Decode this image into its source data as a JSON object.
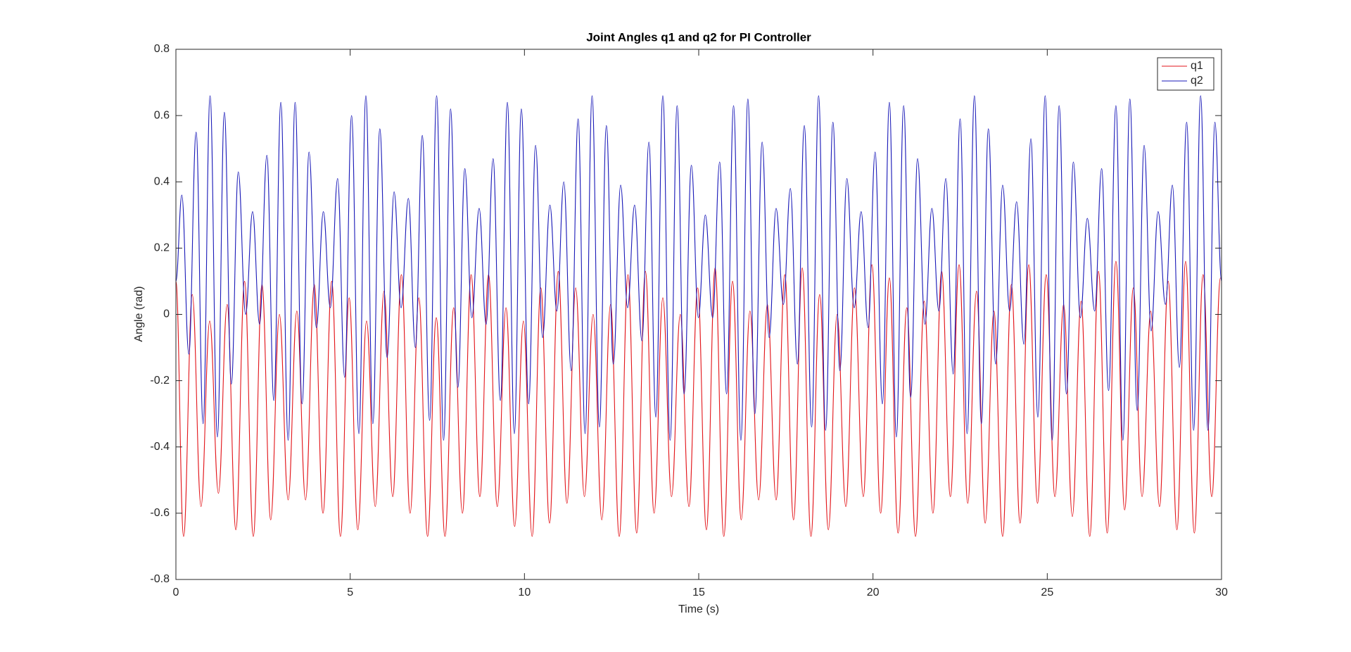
{
  "chart_data": {
    "type": "line",
    "title": "Joint Angles q1 and q2 for PI Controller",
    "xlabel": "Time (s)",
    "ylabel": "Angle (rad)",
    "xlim": [
      0,
      30
    ],
    "xticks": [
      0,
      5,
      10,
      15,
      20,
      25,
      30
    ],
    "ylim": [
      -0.8,
      0.8
    ],
    "yticks": [
      -0.8,
      -0.6,
      -0.4,
      -0.2,
      0,
      0.2,
      0.4,
      0.6,
      0.8
    ],
    "legend": "upper right",
    "series": [
      {
        "name": "q1",
        "color": "#e3161b",
        "x": [
          0,
          0.22,
          0.47,
          0.72,
          0.97,
          1.22,
          1.47,
          1.72,
          1.97,
          2.22,
          2.47,
          2.72,
          2.97,
          3.22,
          3.47,
          3.72,
          3.97,
          4.22,
          4.47,
          4.72,
          4.97,
          5.22,
          5.47,
          5.72,
          5.97,
          6.22,
          6.47,
          6.72,
          6.97,
          7.22,
          7.47,
          7.72,
          7.97,
          8.22,
          8.47,
          8.72,
          8.97,
          9.22,
          9.47,
          9.72,
          9.97,
          10.22,
          10.47,
          10.72,
          10.97,
          11.22,
          11.47,
          11.72,
          11.97,
          12.22,
          12.47,
          12.72,
          12.97,
          13.22,
          13.47,
          13.72,
          13.97,
          14.22,
          14.47,
          14.72,
          14.97,
          15.22,
          15.47,
          15.72,
          15.97,
          16.22,
          16.47,
          16.72,
          16.97,
          17.22,
          17.47,
          17.72,
          17.97,
          18.22,
          18.47,
          18.72,
          18.97,
          19.22,
          19.47,
          19.72,
          19.97,
          20.22,
          20.47,
          20.72,
          20.97,
          21.22,
          21.47,
          21.72,
          21.97,
          22.22,
          22.47,
          22.72,
          22.97,
          23.22,
          23.47,
          23.72,
          23.97,
          24.22,
          24.47,
          24.72,
          24.97,
          25.22,
          25.47,
          25.72,
          25.97,
          26.22,
          26.47,
          26.72,
          26.97,
          27.22,
          27.47,
          27.72,
          27.97,
          28.22,
          28.47,
          28.72,
          28.97,
          29.22,
          29.47,
          29.72,
          29.97
        ],
        "values": [
          0.1,
          -0.67,
          0.06,
          -0.58,
          -0.02,
          -0.54,
          0.03,
          -0.65,
          0.1,
          -0.67,
          0.09,
          -0.62,
          0.0,
          -0.56,
          0.01,
          -0.56,
          0.09,
          -0.6,
          0.1,
          -0.67,
          0.05,
          -0.65,
          -0.02,
          -0.58,
          0.07,
          -0.55,
          0.12,
          -0.6,
          0.05,
          -0.67,
          -0.01,
          -0.67,
          0.02,
          -0.6,
          0.12,
          -0.55,
          0.12,
          -0.58,
          0.02,
          -0.64,
          -0.02,
          -0.67,
          0.08,
          -0.63,
          0.13,
          -0.57,
          0.08,
          -0.55,
          0.0,
          -0.62,
          0.03,
          -0.67,
          0.12,
          -0.66,
          0.13,
          -0.6,
          0.05,
          -0.55,
          0.0,
          -0.58,
          0.08,
          -0.65,
          0.14,
          -0.67,
          0.1,
          -0.62,
          0.01,
          -0.56,
          0.03,
          -0.56,
          0.12,
          -0.62,
          0.14,
          -0.67,
          0.06,
          -0.65,
          0.0,
          -0.58,
          0.08,
          -0.55,
          0.15,
          -0.6,
          0.11,
          -0.66,
          0.02,
          -0.67,
          0.04,
          -0.6,
          0.13,
          -0.55,
          0.15,
          -0.57,
          0.07,
          -0.63,
          0.01,
          -0.67,
          0.09,
          -0.63,
          0.15,
          -0.57,
          0.12,
          -0.55,
          0.03,
          -0.61,
          0.04,
          -0.67,
          0.13,
          -0.66,
          0.16,
          -0.59,
          0.08,
          -0.55,
          0.01,
          -0.58,
          0.1,
          -0.65,
          0.16,
          -0.66,
          0.12,
          -0.55,
          0.11
        ]
      },
      {
        "name": "q2",
        "color": "#1a1ab8",
        "x": [
          0,
          0.17,
          0.37,
          0.58,
          0.78,
          0.98,
          1.19,
          1.39,
          1.59,
          1.79,
          2.0,
          2.2,
          2.4,
          2.61,
          2.81,
          3.01,
          3.22,
          3.42,
          3.62,
          3.82,
          4.03,
          4.23,
          4.43,
          4.64,
          4.84,
          5.04,
          5.25,
          5.45,
          5.65,
          5.85,
          6.06,
          6.26,
          6.46,
          6.67,
          6.87,
          7.07,
          7.28,
          7.48,
          7.68,
          7.88,
          8.09,
          8.29,
          8.49,
          8.7,
          8.9,
          9.1,
          9.31,
          9.51,
          9.71,
          9.91,
          10.12,
          10.32,
          10.52,
          10.73,
          10.93,
          11.13,
          11.34,
          11.54,
          11.74,
          11.94,
          12.15,
          12.35,
          12.55,
          12.76,
          12.96,
          13.16,
          13.37,
          13.57,
          13.77,
          13.97,
          14.18,
          14.38,
          14.58,
          14.79,
          14.99,
          15.19,
          15.4,
          15.6,
          15.8,
          16.0,
          16.21,
          16.41,
          16.61,
          16.82,
          17.02,
          17.22,
          17.43,
          17.63,
          17.83,
          18.03,
          18.24,
          18.44,
          18.64,
          18.85,
          19.05,
          19.25,
          19.46,
          19.66,
          19.86,
          20.06,
          20.27,
          20.47,
          20.67,
          20.88,
          21.08,
          21.28,
          21.49,
          21.69,
          21.89,
          22.09,
          22.3,
          22.5,
          22.7,
          22.91,
          23.11,
          23.31,
          23.52,
          23.72,
          23.92,
          24.12,
          24.33,
          24.53,
          24.73,
          24.94,
          25.14,
          25.34,
          25.55,
          25.75,
          25.95,
          26.15,
          26.36,
          26.56,
          26.76,
          26.97,
          27.17,
          27.37,
          27.58,
          27.78,
          27.98,
          28.18,
          28.39,
          28.59,
          28.79,
          29.0,
          29.2,
          29.4,
          29.61,
          29.81,
          30
        ],
        "values": [
          0.1,
          0.36,
          -0.12,
          0.55,
          -0.33,
          0.66,
          -0.37,
          0.61,
          -0.21,
          0.43,
          0.0,
          0.31,
          -0.03,
          0.48,
          -0.26,
          0.64,
          -0.38,
          0.64,
          -0.27,
          0.49,
          -0.04,
          0.31,
          0.02,
          0.41,
          -0.19,
          0.6,
          -0.36,
          0.66,
          -0.33,
          0.56,
          -0.13,
          0.37,
          0.02,
          0.35,
          -0.1,
          0.54,
          -0.32,
          0.66,
          -0.38,
          0.62,
          -0.22,
          0.44,
          -0.01,
          0.32,
          -0.03,
          0.47,
          -0.26,
          0.64,
          -0.36,
          0.62,
          -0.27,
          0.51,
          -0.07,
          0.33,
          0.01,
          0.4,
          -0.17,
          0.59,
          -0.36,
          0.66,
          -0.34,
          0.57,
          -0.15,
          0.39,
          0.02,
          0.33,
          -0.08,
          0.52,
          -0.31,
          0.66,
          -0.38,
          0.63,
          -0.24,
          0.45,
          -0.01,
          0.3,
          -0.01,
          0.46,
          -0.24,
          0.63,
          -0.38,
          0.65,
          -0.3,
          0.52,
          -0.07,
          0.32,
          0.03,
          0.38,
          -0.15,
          0.57,
          -0.34,
          0.66,
          -0.35,
          0.58,
          -0.17,
          0.41,
          0.02,
          0.31,
          -0.04,
          0.49,
          -0.27,
          0.64,
          -0.37,
          0.63,
          -0.25,
          0.47,
          -0.03,
          0.32,
          0.01,
          0.41,
          -0.18,
          0.59,
          -0.36,
          0.66,
          -0.33,
          0.56,
          -0.15,
          0.39,
          0.01,
          0.34,
          -0.09,
          0.53,
          -0.31,
          0.66,
          -0.38,
          0.63,
          -0.24,
          0.46,
          -0.01,
          0.29,
          0.01,
          0.44,
          -0.23,
          0.63,
          -0.38,
          0.65,
          -0.29,
          0.51,
          -0.05,
          0.31,
          0.03,
          0.39,
          -0.16,
          0.58,
          -0.35,
          0.66,
          -0.35,
          0.58,
          0.1
        ]
      }
    ]
  }
}
